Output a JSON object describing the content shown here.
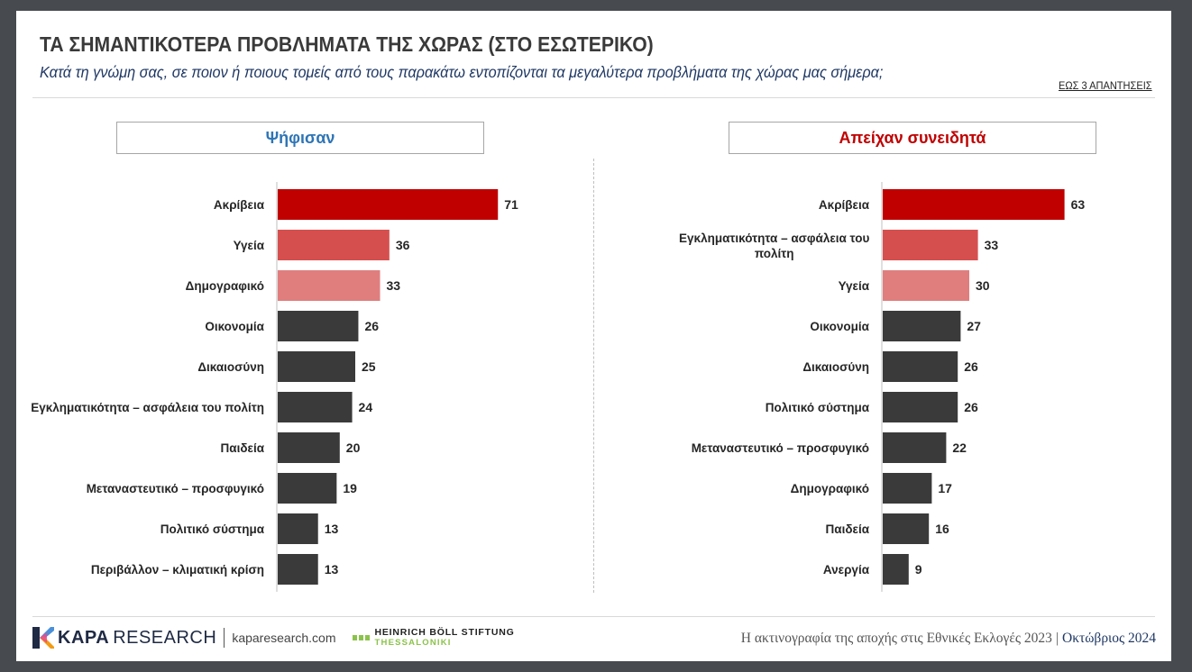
{
  "header": {
    "title": "ΤΑ ΣΗΜΑΝΤΙΚΟΤΕΡΑ ΠΡΟΒΛΗΜΑΤΑ ΤΗΣ ΧΩΡΑΣ (ΣΤΟ ΕΣΩΤΕΡΙΚΟ)",
    "subtitle": "Κατά τη γνώμη σας, σε ποιον ή ποιους τομείς από τους παρακάτω εντοπίζονται τα μεγαλύτερα προβλήματα της χώρας μας σήμερα;",
    "note": "ΕΩΣ 3 ΑΠΑΝΤΗΣΕΙΣ"
  },
  "colors": {
    "top1": "#c00000",
    "top2": "#d64f4f",
    "top3": "#e07e7e",
    "rest": "#3a3a3a",
    "left_header": "#2e75b6",
    "right_header": "#c00000"
  },
  "chart_data": [
    {
      "type": "bar",
      "orientation": "horizontal",
      "title": "Ψήφισαν",
      "categories": [
        "Ακρίβεια",
        "Υγεία",
        "Δημογραφικό",
        "Οικονομία",
        "Δικαιοσύνη",
        "Εγκληματικότητα – ασφάλεια του πολίτη",
        "Παιδεία",
        "Μεταναστευτικό – προσφυγικό",
        "Πολιτικό σύστημα",
        "Περιβάλλον – κλιματική κρίση"
      ],
      "values": [
        71,
        36,
        33,
        26,
        25,
        24,
        20,
        19,
        13,
        13
      ],
      "grid": false,
      "legend": "none"
    },
    {
      "type": "bar",
      "orientation": "horizontal",
      "title": "Απείχαν συνειδητά",
      "categories": [
        "Ακρίβεια",
        "Εγκληματικότητα – ασφάλεια του πολίτη",
        "Υγεία",
        "Οικονομία",
        "Δικαιοσύνη",
        "Πολιτικό σύστημα",
        "Μεταναστευτικό – προσφυγικό",
        "Δημογραφικό",
        "Παιδεία",
        "Ανεργία"
      ],
      "values": [
        63,
        33,
        30,
        27,
        26,
        26,
        22,
        17,
        16,
        9
      ],
      "grid": false,
      "legend": "none"
    }
  ],
  "footer": {
    "brand_bold": "KAPA",
    "brand_light": "RESEARCH",
    "url": "kaparesearch.com",
    "partner_line1": "HEINRICH BÖLL STIFTUNG",
    "partner_line2": "THESSALONIKI",
    "report": "Η ακτινογραφία της αποχής στις Εθνικές Εκλογές 2023",
    "date": "Οκτώβριος 2024"
  }
}
